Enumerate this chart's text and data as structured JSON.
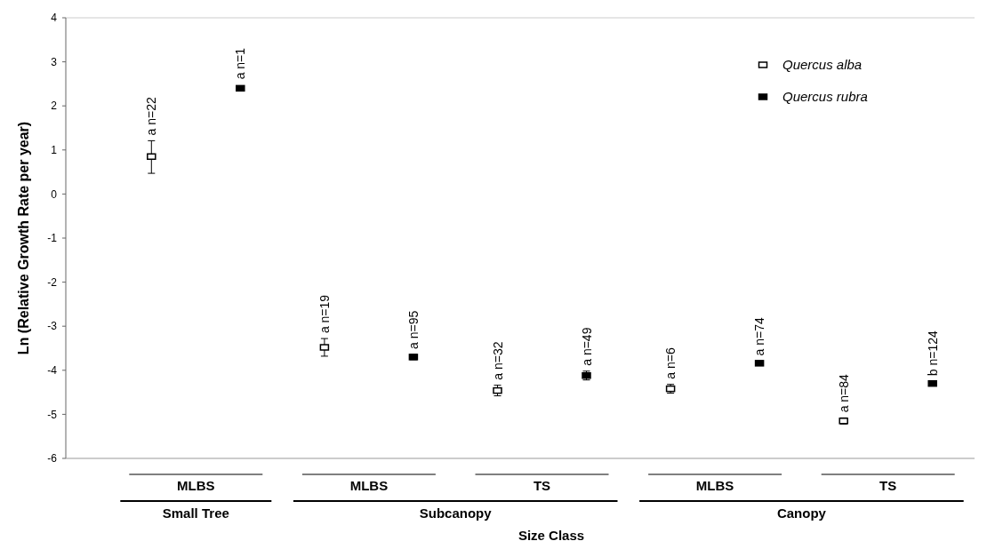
{
  "chart_data": {
    "type": "scatter",
    "ylabel": "Ln (Relative Growth Rate per year)",
    "xlabel": "Size Class",
    "categories": [
      "MLBS",
      "MLBS",
      "TS",
      "MLBS",
      "TS"
    ],
    "annotations": [
      "Small Tree",
      "Subcanopy",
      "Canopy",
      "a n=22",
      "a n=1",
      "a n=19",
      "a n=95",
      "a n=32",
      "a n=49",
      "a n=6",
      "a n=74",
      "a n=84",
      "b n=124"
    ],
    "ylim": [
      -6,
      4
    ],
    "yticks": [
      -6,
      -5,
      -4,
      -3,
      -2,
      -1,
      0,
      1,
      2,
      3,
      4
    ],
    "grid": false,
    "legend": "top right",
    "marker": "square",
    "series": [
      {
        "name": "Quercus alba",
        "color": "#ffffff",
        "values": [
          0.85,
          -3.48,
          -4.46,
          -4.42,
          -5.15
        ],
        "errors": [
          [
            0.47,
            1.21
          ],
          0.2,
          0.12,
          0.1,
          0.07
        ]
      },
      {
        "name": "Quercus rubra",
        "color": "#000000",
        "values": [
          2.4,
          -3.7,
          -4.12,
          -3.84,
          -4.3
        ],
        "errors": [
          null,
          0.06,
          0.1,
          0.05,
          0.05
        ]
      }
    ]
  }
}
